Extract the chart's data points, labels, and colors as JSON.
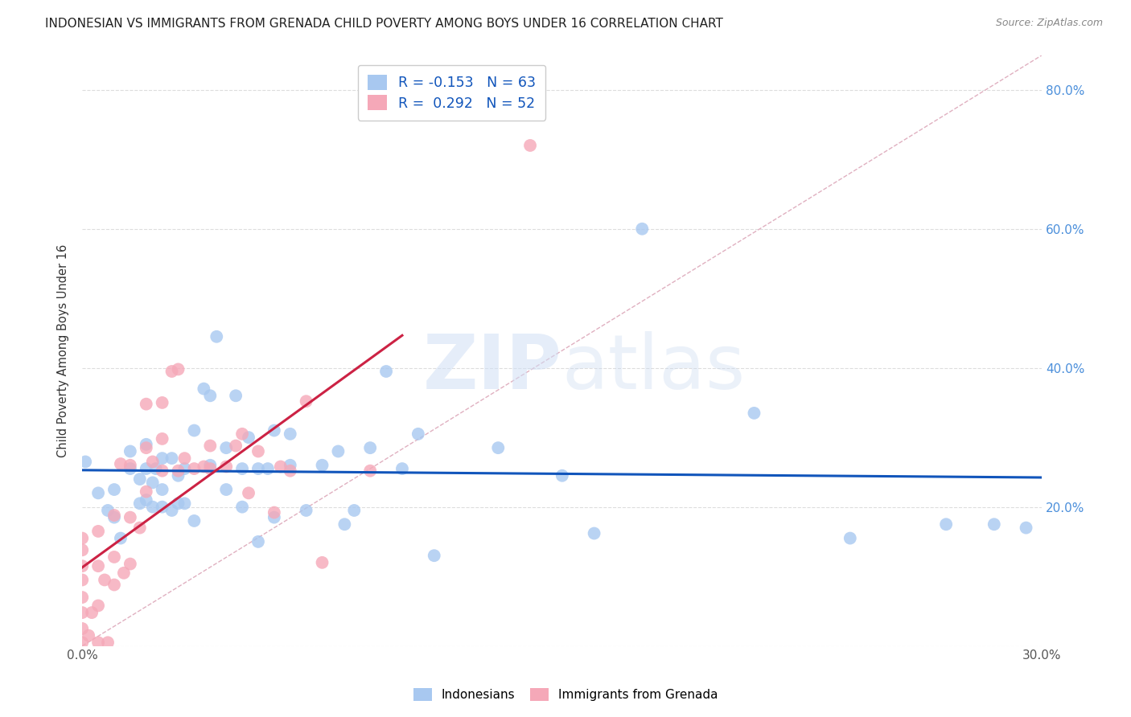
{
  "title": "INDONESIAN VS IMMIGRANTS FROM GRENADA CHILD POVERTY AMONG BOYS UNDER 16 CORRELATION CHART",
  "source": "Source: ZipAtlas.com",
  "ylabel": "Child Poverty Among Boys Under 16",
  "xlim": [
    0.0,
    0.3
  ],
  "ylim": [
    0.0,
    0.85
  ],
  "xticks": [
    0.0,
    0.05,
    0.1,
    0.15,
    0.2,
    0.25,
    0.3
  ],
  "xticklabels": [
    "0.0%",
    "",
    "",
    "",
    "",
    "",
    "30.0%"
  ],
  "yticks": [
    0.0,
    0.2,
    0.4,
    0.6,
    0.8
  ],
  "yticklabels_right": [
    "",
    "20.0%",
    "40.0%",
    "60.0%",
    "80.0%"
  ],
  "legend_labels": [
    "Indonesians",
    "Immigrants from Grenada"
  ],
  "R_blue": -0.153,
  "N_blue": 63,
  "R_pink": 0.292,
  "N_pink": 52,
  "blue_color": "#A8C8F0",
  "pink_color": "#F5A8B8",
  "blue_line_color": "#1155BB",
  "pink_line_color": "#CC2244",
  "diag_line_color": "#E0B0C0",
  "blue_points_x": [
    0.001,
    0.005,
    0.008,
    0.01,
    0.01,
    0.012,
    0.015,
    0.015,
    0.018,
    0.018,
    0.02,
    0.02,
    0.02,
    0.022,
    0.022,
    0.023,
    0.025,
    0.025,
    0.025,
    0.028,
    0.028,
    0.03,
    0.03,
    0.032,
    0.032,
    0.035,
    0.035,
    0.038,
    0.04,
    0.04,
    0.042,
    0.045,
    0.045,
    0.048,
    0.05,
    0.05,
    0.052,
    0.055,
    0.055,
    0.058,
    0.06,
    0.06,
    0.065,
    0.065,
    0.07,
    0.075,
    0.08,
    0.082,
    0.085,
    0.09,
    0.095,
    0.1,
    0.105,
    0.11,
    0.13,
    0.15,
    0.16,
    0.175,
    0.21,
    0.24,
    0.27,
    0.285,
    0.295
  ],
  "blue_points_y": [
    0.265,
    0.22,
    0.195,
    0.185,
    0.225,
    0.155,
    0.255,
    0.28,
    0.205,
    0.24,
    0.21,
    0.255,
    0.29,
    0.2,
    0.235,
    0.255,
    0.2,
    0.225,
    0.27,
    0.195,
    0.27,
    0.205,
    0.245,
    0.205,
    0.255,
    0.18,
    0.31,
    0.37,
    0.26,
    0.36,
    0.445,
    0.225,
    0.285,
    0.36,
    0.2,
    0.255,
    0.3,
    0.15,
    0.255,
    0.255,
    0.31,
    0.185,
    0.26,
    0.305,
    0.195,
    0.26,
    0.28,
    0.175,
    0.195,
    0.285,
    0.395,
    0.255,
    0.305,
    0.13,
    0.285,
    0.245,
    0.162,
    0.6,
    0.335,
    0.155,
    0.175,
    0.175,
    0.17
  ],
  "pink_points_x": [
    0.0,
    0.0,
    0.0,
    0.0,
    0.0,
    0.0,
    0.0,
    0.0,
    0.002,
    0.003,
    0.005,
    0.005,
    0.005,
    0.005,
    0.007,
    0.008,
    0.01,
    0.01,
    0.01,
    0.012,
    0.013,
    0.015,
    0.015,
    0.015,
    0.018,
    0.02,
    0.02,
    0.02,
    0.022,
    0.025,
    0.025,
    0.025,
    0.028,
    0.03,
    0.03,
    0.032,
    0.035,
    0.038,
    0.04,
    0.04,
    0.045,
    0.048,
    0.05,
    0.052,
    0.055,
    0.06,
    0.062,
    0.065,
    0.07,
    0.075,
    0.09,
    0.14
  ],
  "pink_points_y": [
    0.005,
    0.025,
    0.048,
    0.07,
    0.095,
    0.115,
    0.138,
    0.155,
    0.015,
    0.048,
    0.005,
    0.058,
    0.115,
    0.165,
    0.095,
    0.005,
    0.088,
    0.128,
    0.188,
    0.262,
    0.105,
    0.118,
    0.185,
    0.26,
    0.17,
    0.222,
    0.285,
    0.348,
    0.265,
    0.252,
    0.298,
    0.35,
    0.395,
    0.252,
    0.398,
    0.27,
    0.255,
    0.258,
    0.255,
    0.288,
    0.258,
    0.288,
    0.305,
    0.22,
    0.28,
    0.192,
    0.258,
    0.252,
    0.352,
    0.12,
    0.252,
    0.72
  ],
  "watermark_zip": "ZIP",
  "watermark_atlas": "atlas",
  "background_color": "#FFFFFF",
  "grid_color": "#DDDDDD"
}
